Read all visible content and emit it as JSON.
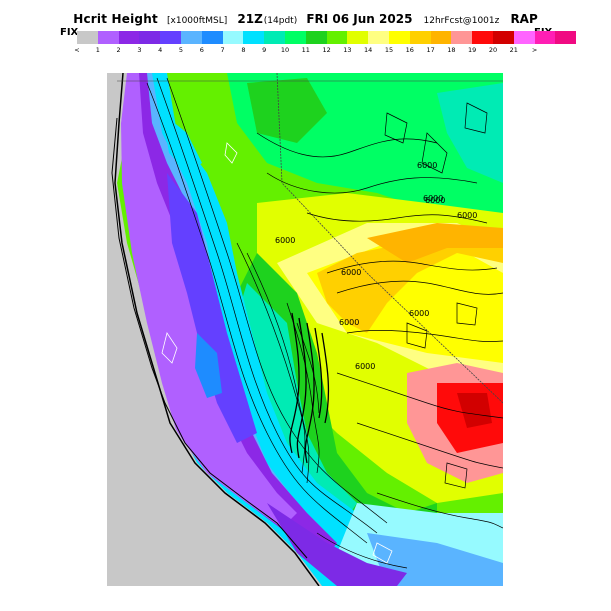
{
  "header": {
    "title": "Hcrit Height",
    "units": "[x1000ftMSL]",
    "time": "21Z",
    "time_note": "(14pdt)",
    "date": "FRI 06 Jun 2025",
    "forecast": "12hrFcst@1001z",
    "model": "RAP"
  },
  "colorbar": {
    "fix_left": "FIX",
    "fix_right": "FIX",
    "colors": [
      "#c8c8c8",
      "#b060ff",
      "#8c28e6",
      "#7d2ae6",
      "#6440ff",
      "#5ab4ff",
      "#1e8cff",
      "#96faff",
      "#00e1ff",
      "#00ebb4",
      "#00ff64",
      "#1ed21e",
      "#64f000",
      "#e1ff00",
      "#ffff82",
      "#ffff00",
      "#ffd000",
      "#ffb400",
      "#ff9696",
      "#ff0a0a",
      "#d20000",
      "#ff64ff",
      "#ff1eb4",
      "#f00a82"
    ],
    "tick_labels": [
      "<",
      "1",
      "2",
      "3",
      "4",
      "5",
      "6",
      "7",
      "8",
      "9",
      "10",
      "11",
      "12",
      "13",
      "14",
      "15",
      "16",
      "17",
      "18",
      "19",
      "20",
      "21",
      ">"
    ]
  },
  "map": {
    "contour_labels": [
      "6000",
      "6000",
      "6000",
      "6000",
      "6000",
      "6000",
      "6000",
      "6000",
      "6000"
    ]
  }
}
